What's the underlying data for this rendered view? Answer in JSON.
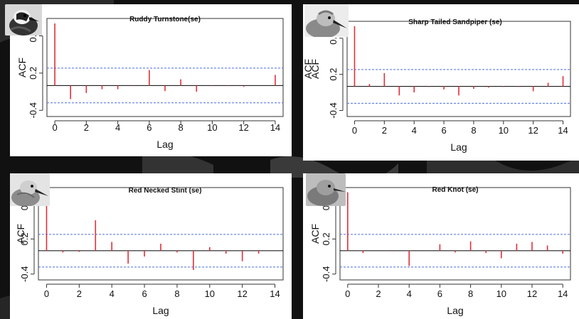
{
  "chart_data": [
    {
      "type": "bar",
      "title": "Ruddy Turnstone(se)",
      "xlabel": "Lag",
      "ylabel": "ACF",
      "ylabel_extra": "",
      "x": [
        0,
        1,
        2,
        3,
        4,
        5,
        6,
        7,
        8,
        9,
        10,
        11,
        12,
        13,
        14
      ],
      "values": [
        1.0,
        -0.22,
        -0.12,
        -0.06,
        -0.06,
        -0.01,
        0.25,
        -0.09,
        0.1,
        -0.1,
        -0.01,
        -0.01,
        -0.02,
        0.0,
        0.17
      ],
      "conf_band": [
        0.28,
        -0.28
      ],
      "xticks": [
        0,
        2,
        4,
        6,
        8,
        10,
        12,
        14
      ],
      "yticks": [
        -0.4,
        0.2,
        0.8
      ],
      "ytick_labels": [
        "-0.4",
        "0.2",
        "0.8"
      ],
      "xlim": [
        -0.5,
        14.5
      ],
      "ylim": [
        -0.5,
        1.08
      ],
      "grid": false,
      "colors": {
        "bars": "#e0303a",
        "band": "#4a6ee0",
        "zero": "#000000"
      },
      "icon": "ruddy-turnstone-photo-icon"
    },
    {
      "type": "bar",
      "title": "Sharp Tailed Sandpiper (se)",
      "xlabel": "Lag",
      "ylabel": "ACF",
      "ylabel_extra": "ACF",
      "x": [
        0,
        1,
        2,
        3,
        4,
        5,
        6,
        7,
        8,
        9,
        10,
        11,
        12,
        13,
        14
      ],
      "values": [
        1.0,
        0.04,
        0.22,
        -0.15,
        -0.1,
        -0.01,
        -0.05,
        -0.15,
        -0.04,
        -0.02,
        -0.01,
        -0.01,
        -0.08,
        0.06,
        0.17
      ],
      "conf_band": [
        0.28,
        -0.28
      ],
      "xticks": [
        0,
        2,
        4,
        6,
        8,
        10,
        12,
        14
      ],
      "yticks": [
        -0.4,
        0.2,
        0.8
      ],
      "ytick_labels": [
        "-0.4",
        "0.2",
        "0.8"
      ],
      "xlim": [
        -0.5,
        14.5
      ],
      "ylim": [
        -0.5,
        1.08
      ],
      "grid": false,
      "colors": {
        "bars": "#e0303a",
        "band": "#4a6ee0",
        "zero": "#000000"
      },
      "icon": "sharp-tailed-sandpiper-photo-icon"
    },
    {
      "type": "bar",
      "title": "Red Necked Stint (se)",
      "xlabel": "Lag",
      "ylabel": "ACF",
      "ylabel_extra": "",
      "x": [
        0,
        1,
        2,
        3,
        4,
        5,
        6,
        7,
        8,
        9,
        10,
        11,
        12,
        13,
        14
      ],
      "values": [
        1.0,
        -0.03,
        -0.02,
        0.52,
        0.15,
        -0.22,
        -0.1,
        0.12,
        -0.03,
        -0.33,
        0.06,
        -0.05,
        -0.18,
        -0.05,
        0.0
      ],
      "conf_band": [
        0.28,
        -0.28
      ],
      "xticks": [
        0,
        2,
        4,
        6,
        8,
        10,
        12,
        14
      ],
      "yticks": [
        -0.4,
        0.2,
        0.8
      ],
      "ytick_labels": [
        "-0.4",
        "0.2",
        "0.8"
      ],
      "xlim": [
        -0.5,
        14.5
      ],
      "ylim": [
        -0.5,
        1.08
      ],
      "grid": false,
      "colors": {
        "bars": "#e0303a",
        "band": "#4a6ee0",
        "zero": "#000000"
      },
      "icon": "red-necked-stint-photo-icon"
    },
    {
      "type": "bar",
      "title": "Red Knot (se)",
      "xlabel": "Lag",
      "ylabel": "ACF",
      "ylabel_extra": "",
      "x": [
        0,
        1,
        2,
        3,
        4,
        5,
        6,
        7,
        8,
        9,
        10,
        11,
        12,
        13,
        14
      ],
      "values": [
        1.0,
        -0.04,
        0.0,
        -0.01,
        -0.26,
        0.0,
        0.11,
        -0.03,
        0.16,
        -0.04,
        -0.13,
        0.12,
        0.15,
        0.09,
        -0.05
      ],
      "conf_band": [
        0.28,
        -0.28
      ],
      "xticks": [
        0,
        2,
        4,
        6,
        8,
        10,
        12,
        14
      ],
      "yticks": [
        -0.4,
        0.2,
        0.8
      ],
      "ytick_labels": [
        "-0.4",
        "0.2",
        "0.8"
      ],
      "xlim": [
        -0.5,
        14.5
      ],
      "ylim": [
        -0.5,
        1.08
      ],
      "grid": false,
      "colors": {
        "bars": "#e0303a",
        "band": "#4a6ee0",
        "zero": "#000000"
      },
      "icon": "red-knot-photo-icon"
    }
  ]
}
